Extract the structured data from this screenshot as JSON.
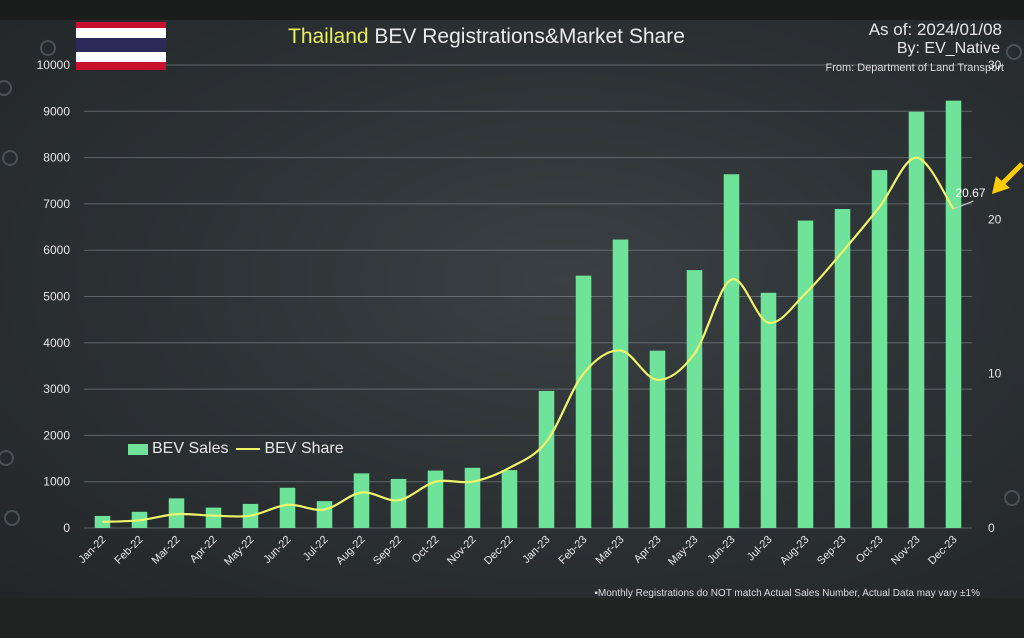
{
  "header": {
    "title_highlight": "Thailand",
    "title_rest": "BEV Registrations&Market Share",
    "as_of": "As of: 2024/01/08",
    "by": "By: EV_Native",
    "from": "From: Department of Land Transport"
  },
  "legend": {
    "bar_label": "BEV Sales",
    "line_label": "BEV Share"
  },
  "footnote": "▪Monthly Registrations do NOT match Actual Sales Number, Actual Data may vary ±1%",
  "colors": {
    "bar": "#6fe39a",
    "line": "#eef56a",
    "title_highlight": "#e6ef5c",
    "arrow": "#ffcc00",
    "flag_red": "#c8102e",
    "flag_white": "#ffffff",
    "flag_blue": "#2d2a5a"
  },
  "chart_data": {
    "type": "bar",
    "title": "Thailand BEV Registrations&Market Share",
    "categories": [
      "Jan-22",
      "Feb-22",
      "Mar-22",
      "Apr-22",
      "May-22",
      "Jun-22",
      "Jul-22",
      "Aug-22",
      "Sep-22",
      "Oct-22",
      "Nov-22",
      "Dec-22",
      "Jan-23",
      "Feb-23",
      "Mar-23",
      "Apr-23",
      "May-23",
      "Jun-23",
      "Jul-23",
      "Aug-23",
      "Sep-23",
      "Oct-23",
      "Nov-23",
      "Dec-23"
    ],
    "series": [
      {
        "name": "BEV Sales",
        "type": "bar",
        "axis": "left",
        "values": [
          260,
          350,
          640,
          440,
          520,
          870,
          580,
          1180,
          1060,
          1240,
          1300,
          1250,
          2960,
          5450,
          6230,
          3830,
          5570,
          7640,
          5080,
          6640,
          6890,
          7730,
          8990,
          9230
        ]
      },
      {
        "name": "BEV Share",
        "type": "line",
        "axis": "right",
        "values": [
          0.4,
          0.5,
          0.9,
          0.8,
          0.8,
          1.5,
          1.2,
          2.3,
          1.8,
          3.0,
          3.0,
          3.9,
          5.6,
          10.0,
          11.5,
          9.6,
          11.3,
          16.1,
          13.3,
          15.2,
          17.9,
          20.8,
          24.0,
          20.67
        ]
      }
    ],
    "ylim": [
      0,
      10000
    ],
    "yticks": [
      "0",
      "1000",
      "2000",
      "3000",
      "4000",
      "5000",
      "6000",
      "7000",
      "8000",
      "9000",
      "10000"
    ],
    "y2lim": [
      0,
      30
    ],
    "y2ticks": [
      "0",
      "10",
      "20",
      "30"
    ],
    "annotation": "20.67",
    "grid": true,
    "legend_position": "lower-left"
  }
}
